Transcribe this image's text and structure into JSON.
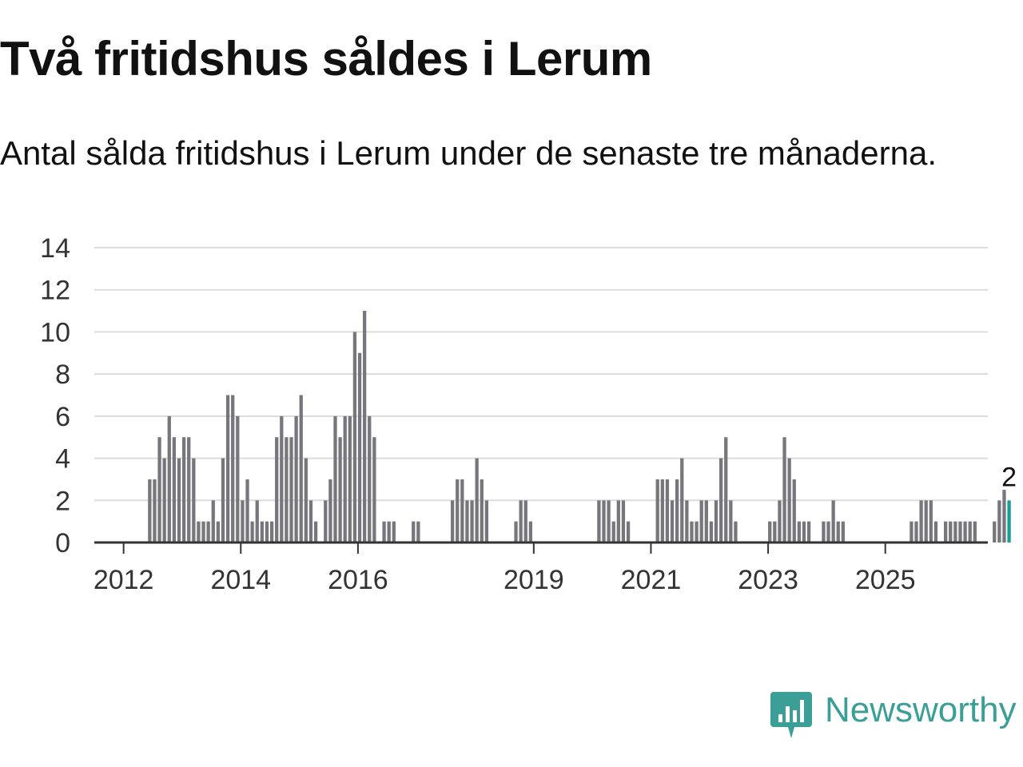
{
  "header": {
    "title": "Två fritidshus såldes i Lerum",
    "subtitle": "Antal sålda fritidshus i Lerum under de senaste tre månaderna."
  },
  "brand": {
    "name": "Newsworthy",
    "color": "#3b9e97",
    "icon": "newsworthy-logo-icon"
  },
  "colors": {
    "bar": "#77767d",
    "highlight": "#179e96",
    "grid": "#dcdcdc",
    "axis": "#333333"
  },
  "chart_data": {
    "type": "bar",
    "ylim": [
      0,
      14
    ],
    "yticks": [
      0,
      2,
      4,
      6,
      8,
      10,
      12,
      14
    ],
    "x_start": 2011.5,
    "x_end": 2026.75,
    "xticks": [
      {
        "year": 2012,
        "label": "2012"
      },
      {
        "year": 2014,
        "label": "2014"
      },
      {
        "year": 2016,
        "label": "2016"
      },
      {
        "year": 2019,
        "label": "2019"
      },
      {
        "year": 2021,
        "label": "2021"
      },
      {
        "year": 2023,
        "label": "2023"
      },
      {
        "year": 2025,
        "label": "2025"
      }
    ],
    "grid": true,
    "series_start_year": 2012,
    "values": [
      0,
      0,
      0,
      0,
      0,
      3,
      3,
      5,
      4,
      6,
      5,
      4,
      5,
      5,
      4,
      1,
      1,
      1,
      2,
      1,
      4,
      7,
      7,
      6,
      2,
      3,
      1,
      2,
      1,
      1,
      1,
      5,
      6,
      5,
      5,
      6,
      7,
      4,
      2,
      1,
      0,
      2,
      3,
      6,
      5,
      6,
      6,
      10,
      9,
      11,
      6,
      5,
      0,
      1,
      1,
      1,
      0,
      0,
      0,
      1,
      1,
      0,
      0,
      0,
      0,
      0,
      0,
      2,
      3,
      3,
      2,
      2,
      4,
      3,
      2,
      0,
      0,
      0,
      0,
      0,
      1,
      2,
      2,
      1,
      0,
      0,
      0,
      0,
      0,
      0,
      0,
      0,
      0,
      0,
      0,
      0,
      0,
      2,
      2,
      2,
      1,
      2,
      2,
      1,
      0,
      0,
      0,
      0,
      0,
      3,
      3,
      3,
      2,
      3,
      4,
      2,
      1,
      1,
      2,
      2,
      1,
      2,
      4,
      5,
      2,
      1,
      0,
      0,
      0,
      0,
      0,
      0,
      1,
      1,
      2,
      5,
      4,
      3,
      1,
      1,
      1,
      0,
      0,
      1,
      1,
      2,
      1,
      1,
      0,
      0,
      0,
      0,
      0,
      0,
      0,
      0,
      0,
      0,
      0,
      0,
      0,
      1,
      1,
      2,
      2,
      2,
      1,
      0,
      1,
      1,
      1,
      1,
      1,
      1,
      1,
      0,
      0,
      0,
      1,
      2,
      2.5,
      2
    ],
    "highlight_last": true,
    "annotation": "2"
  }
}
